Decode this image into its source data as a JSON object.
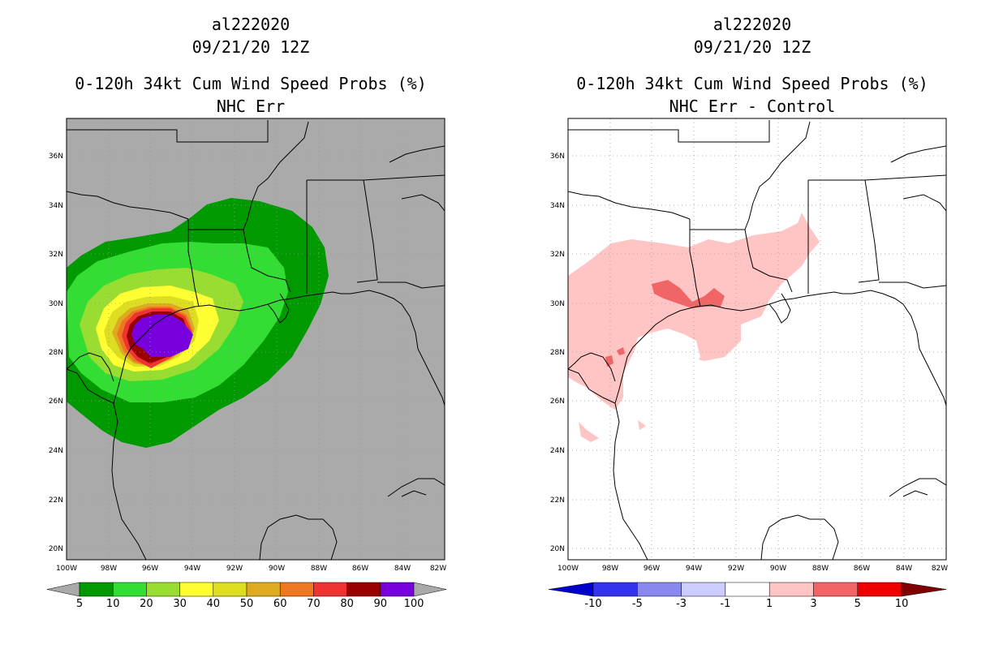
{
  "panels": [
    {
      "storm_id": "al222020",
      "datetime": "09/21/20 12Z",
      "title": "0-120h 34kt Cum Wind Speed Probs (%)",
      "subtitle": "NHC Err",
      "colorbar": {
        "colors": [
          "#009900",
          "#33dd33",
          "#99dd33",
          "#ffff33",
          "#dddd22",
          "#ddaa22",
          "#ee7722",
          "#ee3333",
          "#990000",
          "#7700dd"
        ],
        "labels": [
          "5",
          "10",
          "20",
          "30",
          "40",
          "50",
          "60",
          "70",
          "80",
          "90",
          "100"
        ]
      }
    },
    {
      "storm_id": "al222020",
      "datetime": "09/21/20 12Z",
      "title": "0-120h 34kt Cum Wind Speed Probs (%)",
      "subtitle": "NHC Err - Control",
      "colorbar": {
        "colors": [
          "#0000cc",
          "#3333ee",
          "#8888ee",
          "#ccccff",
          "#ffffff",
          "#ffc4c4",
          "#f06666",
          "#ee0000",
          "#800000"
        ],
        "labels": [
          "-10",
          "-5",
          "-3",
          "-1",
          "1",
          "3",
          "5",
          "10"
        ]
      }
    }
  ],
  "axes": {
    "lat_labels": [
      "36N",
      "34N",
      "32N",
      "30N",
      "28N",
      "26N",
      "24N",
      "22N",
      "20N"
    ],
    "lon_labels": [
      "100W",
      "98W",
      "96W",
      "94W",
      "92W",
      "90W",
      "88W",
      "86W",
      "84W",
      "82W"
    ]
  }
}
